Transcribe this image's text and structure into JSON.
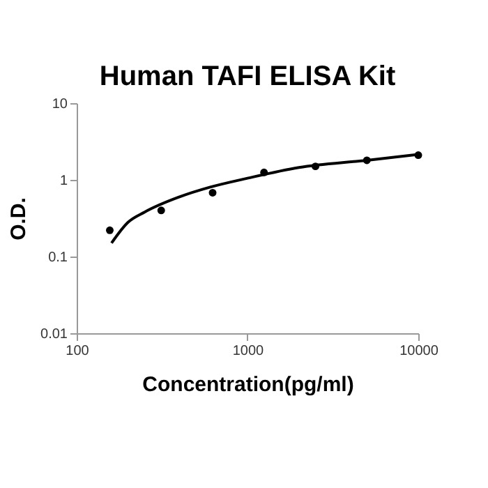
{
  "chart_data": {
    "type": "scatter",
    "title": "Human TAFI ELISA Kit",
    "xlabel": "Concentration(pg/ml)",
    "ylabel": "O.D.",
    "log": "xy",
    "grid": false,
    "xlim": [
      100,
      10000
    ],
    "xticks": [
      100,
      1000,
      10000
    ],
    "ylim": [
      0.01,
      10
    ],
    "yticks": [
      0.01,
      0.1,
      1,
      10
    ],
    "series": [
      {
        "type": "scatter",
        "marker": "circle",
        "color": "#000000",
        "x": [
          156.25,
          312.5,
          625,
          1250,
          2500,
          5000,
          10000
        ],
        "values": [
          0.22,
          0.4,
          0.68,
          1.25,
          1.5,
          1.8,
          2.1
        ]
      },
      {
        "type": "line",
        "color": "#000000",
        "line_style": "solid",
        "x": [
          160,
          200,
          250,
          400,
          600,
          1000,
          2000,
          5000,
          10000
        ],
        "values": [
          0.15,
          0.28,
          0.38,
          0.6,
          0.8,
          1.05,
          1.45,
          1.8,
          2.15
        ]
      }
    ]
  }
}
